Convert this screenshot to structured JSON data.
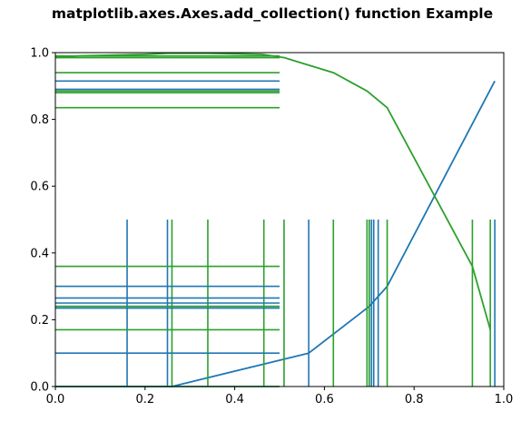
{
  "chart_data": {
    "type": "line",
    "title": "matplotlib.axes.Axes.add_collection() function Example",
    "xlabel": "",
    "ylabel": "",
    "xlim": [
      0.0,
      1.0
    ],
    "ylim": [
      0.0,
      1.0
    ],
    "grid": false,
    "x_ticks": [
      "0.0",
      "0.2",
      "0.4",
      "0.6",
      "0.8",
      "1.0"
    ],
    "y_ticks": [
      "0.0",
      "0.2",
      "0.4",
      "0.6",
      "0.8",
      "1.0"
    ],
    "colors": {
      "blue": "#1f77b4",
      "green": "#2ca02c"
    },
    "series": [
      {
        "type": "line",
        "color": "#1f77b4",
        "x": [
          0.0,
          0.16,
          0.25,
          0.26,
          0.565,
          0.7,
          0.74,
          0.98
        ],
        "y": [
          0.0,
          0.0,
          0.0,
          0.0,
          0.1,
          0.24,
          0.3,
          0.915
        ]
      },
      {
        "type": "line",
        "color": "#2ca02c",
        "x": [
          0.0,
          0.05,
          0.2,
          0.25,
          0.34,
          0.46,
          0.51,
          0.62,
          0.695,
          0.74,
          0.93,
          0.97
        ],
        "y": [
          0.985,
          0.99,
          0.995,
          0.998,
          0.998,
          0.995,
          0.985,
          0.94,
          0.885,
          0.835,
          0.36,
          0.17
        ]
      },
      {
        "type": "vlines",
        "color": "#1f77b4",
        "x": [
          0.16,
          0.25,
          0.565,
          0.7,
          0.705,
          0.71,
          0.72,
          0.98
        ],
        "ymin": 0.0,
        "ymax": 0.5
      },
      {
        "type": "vlines",
        "color": "#2ca02c",
        "x": [
          0.26,
          0.34,
          0.465,
          0.51,
          0.62,
          0.695,
          0.7,
          0.74,
          0.93,
          0.97
        ],
        "ymin": 0.0,
        "ymax": 0.5
      },
      {
        "type": "hlines",
        "color": "#1f77b4",
        "y": [
          0.0,
          0.1,
          0.235,
          0.24,
          0.25,
          0.265,
          0.3,
          0.89,
          0.915
        ],
        "xmin": 0.0,
        "xmax": 0.5
      },
      {
        "type": "hlines",
        "color": "#2ca02c",
        "y": [
          0.0,
          0.17,
          0.24,
          0.36,
          0.835,
          0.88,
          0.885,
          0.94,
          0.985,
          0.99
        ],
        "xmin": 0.0,
        "xmax": 0.5
      }
    ]
  }
}
